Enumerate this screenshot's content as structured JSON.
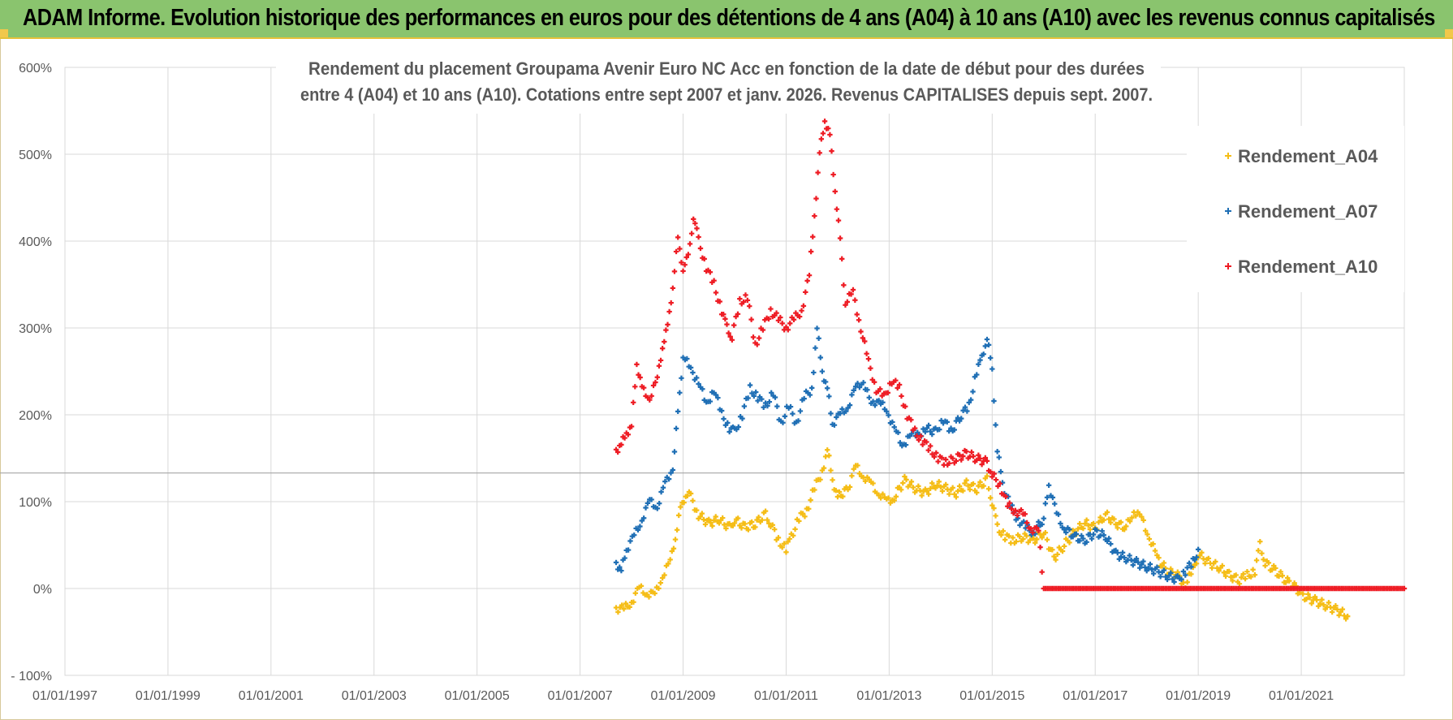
{
  "header": {
    "title": "ADAM Informe. Evolution historique des performances en euros pour des détentions de 4 ans (A04) à 10 ans (A10) avec les revenus connus capitalisés"
  },
  "chart_data": {
    "type": "scatter",
    "title_lines": [
      "Rendement du placement Groupama Avenir Euro NC Acc en fonction de la date de début pour des durées",
      "entre 4 (A04) et 10 ans (A10).  Cotations entre sept 2007 et janv. 2026. Revenus CAPITALISES  depuis sept. 2007."
    ],
    "xlabel": "",
    "ylabel": "",
    "x_range": [
      1997.0,
      2023.0
    ],
    "ylim": [
      -100,
      600
    ],
    "x_ticks": [
      1997,
      1999,
      2001,
      2003,
      2005,
      2007,
      2009,
      2011,
      2013,
      2015,
      2017,
      2019,
      2021
    ],
    "x_tick_labels": [
      "01/01/1997",
      "01/01/1999",
      "01/01/2001",
      "01/01/2003",
      "01/01/2005",
      "01/01/2007",
      "01/01/2009",
      "01/01/2011",
      "01/01/2013",
      "01/01/2015",
      "01/01/2017",
      "01/01/2019",
      "01/01/2021"
    ],
    "y_ticks": [
      -100,
      0,
      100,
      200,
      300,
      400,
      500,
      600
    ],
    "y_tick_labels": [
      "- 100%",
      "0%",
      "100%",
      "200%",
      "300%",
      "400%",
      "500%",
      "600%"
    ],
    "reference_line_y": 133,
    "legend_position": "right",
    "series": [
      {
        "name": "Rendement_A04",
        "color": "#f5bd16",
        "points": [
          [
            2007.7,
            -22
          ],
          [
            2007.85,
            -24
          ],
          [
            2008.0,
            -15
          ],
          [
            2008.15,
            0
          ],
          [
            2008.3,
            -5
          ],
          [
            2008.45,
            -8
          ],
          [
            2008.6,
            15
          ],
          [
            2008.75,
            30
          ],
          [
            2008.85,
            60
          ],
          [
            2008.95,
            90
          ],
          [
            2009.05,
            110
          ],
          [
            2009.15,
            105
          ],
          [
            2009.3,
            85
          ],
          [
            2009.5,
            75
          ],
          [
            2009.7,
            80
          ],
          [
            2009.9,
            70
          ],
          [
            2010.0,
            80
          ],
          [
            2010.2,
            70
          ],
          [
            2010.4,
            75
          ],
          [
            2010.6,
            85
          ],
          [
            2010.7,
            75
          ],
          [
            2010.85,
            55
          ],
          [
            2011.0,
            45
          ],
          [
            2011.1,
            60
          ],
          [
            2011.25,
            80
          ],
          [
            2011.4,
            90
          ],
          [
            2011.55,
            115
          ],
          [
            2011.7,
            135
          ],
          [
            2011.8,
            160
          ],
          [
            2011.9,
            125
          ],
          [
            2012.0,
            105
          ],
          [
            2012.2,
            115
          ],
          [
            2012.35,
            140
          ],
          [
            2012.5,
            130
          ],
          [
            2012.65,
            120
          ],
          [
            2012.8,
            110
          ],
          [
            2012.95,
            100
          ],
          [
            2013.1,
            105
          ],
          [
            2013.3,
            125
          ],
          [
            2013.5,
            115
          ],
          [
            2013.7,
            110
          ],
          [
            2013.9,
            120
          ],
          [
            2014.1,
            115
          ],
          [
            2014.3,
            110
          ],
          [
            2014.5,
            120
          ],
          [
            2014.7,
            115
          ],
          [
            2014.9,
            125
          ],
          [
            2015.0,
            100
          ],
          [
            2015.1,
            70
          ],
          [
            2015.25,
            60
          ],
          [
            2015.4,
            55
          ],
          [
            2015.6,
            60
          ],
          [
            2015.8,
            55
          ],
          [
            2016.0,
            65
          ],
          [
            2016.2,
            35
          ],
          [
            2016.4,
            50
          ],
          [
            2016.6,
            65
          ],
          [
            2016.8,
            75
          ],
          [
            2017.0,
            70
          ],
          [
            2017.2,
            85
          ],
          [
            2017.4,
            75
          ],
          [
            2017.6,
            70
          ],
          [
            2017.75,
            90
          ],
          [
            2017.9,
            80
          ],
          [
            2018.05,
            60
          ],
          [
            2018.2,
            35
          ],
          [
            2018.4,
            20
          ],
          [
            2018.6,
            15
          ],
          [
            2018.75,
            5
          ],
          [
            2018.9,
            20
          ],
          [
            2019.0,
            40
          ],
          [
            2019.2,
            30
          ],
          [
            2019.4,
            25
          ],
          [
            2019.6,
            15
          ],
          [
            2019.8,
            10
          ],
          [
            2019.95,
            15
          ],
          [
            2020.1,
            20
          ],
          [
            2020.2,
            50
          ],
          [
            2020.3,
            30
          ],
          [
            2020.5,
            20
          ],
          [
            2020.7,
            10
          ],
          [
            2020.9,
            0
          ],
          [
            2021.1,
            -10
          ],
          [
            2021.3,
            -15
          ],
          [
            2021.5,
            -20
          ],
          [
            2021.7,
            -25
          ],
          [
            2021.9,
            -32
          ]
        ]
      },
      {
        "name": "Rendement_A07",
        "color": "#1f6fb5",
        "points": [
          [
            2007.7,
            30
          ],
          [
            2007.8,
            20
          ],
          [
            2007.9,
            45
          ],
          [
            2008.05,
            60
          ],
          [
            2008.2,
            80
          ],
          [
            2008.35,
            100
          ],
          [
            2008.5,
            95
          ],
          [
            2008.65,
            120
          ],
          [
            2008.8,
            140
          ],
          [
            2008.9,
            200
          ],
          [
            2009.0,
            270
          ],
          [
            2009.15,
            250
          ],
          [
            2009.3,
            240
          ],
          [
            2009.45,
            210
          ],
          [
            2009.6,
            230
          ],
          [
            2009.75,
            200
          ],
          [
            2009.9,
            185
          ],
          [
            2010.0,
            180
          ],
          [
            2010.15,
            200
          ],
          [
            2010.3,
            230
          ],
          [
            2010.45,
            220
          ],
          [
            2010.6,
            210
          ],
          [
            2010.75,
            225
          ],
          [
            2010.9,
            190
          ],
          [
            2011.05,
            210
          ],
          [
            2011.2,
            190
          ],
          [
            2011.35,
            220
          ],
          [
            2011.5,
            230
          ],
          [
            2011.6,
            300
          ],
          [
            2011.7,
            250
          ],
          [
            2011.8,
            230
          ],
          [
            2011.9,
            190
          ],
          [
            2012.05,
            200
          ],
          [
            2012.2,
            210
          ],
          [
            2012.35,
            230
          ],
          [
            2012.5,
            240
          ],
          [
            2012.65,
            210
          ],
          [
            2012.8,
            220
          ],
          [
            2012.95,
            200
          ],
          [
            2013.1,
            190
          ],
          [
            2013.25,
            160
          ],
          [
            2013.4,
            180
          ],
          [
            2013.55,
            175
          ],
          [
            2013.7,
            185
          ],
          [
            2013.9,
            180
          ],
          [
            2014.05,
            195
          ],
          [
            2014.2,
            180
          ],
          [
            2014.4,
            200
          ],
          [
            2014.55,
            210
          ],
          [
            2014.7,
            250
          ],
          [
            2014.8,
            265
          ],
          [
            2014.9,
            290
          ],
          [
            2015.0,
            250
          ],
          [
            2015.1,
            160
          ],
          [
            2015.2,
            120
          ],
          [
            2015.35,
            95
          ],
          [
            2015.5,
            80
          ],
          [
            2015.65,
            70
          ],
          [
            2015.8,
            65
          ],
          [
            2016.0,
            80
          ],
          [
            2016.1,
            120
          ],
          [
            2016.25,
            85
          ],
          [
            2016.4,
            70
          ],
          [
            2016.6,
            60
          ],
          [
            2016.8,
            55
          ],
          [
            2017.0,
            65
          ],
          [
            2017.2,
            60
          ],
          [
            2017.4,
            40
          ],
          [
            2017.6,
            35
          ],
          [
            2017.8,
            30
          ],
          [
            2018.0,
            25
          ],
          [
            2018.2,
            20
          ],
          [
            2018.4,
            15
          ],
          [
            2018.6,
            10
          ],
          [
            2018.75,
            20
          ],
          [
            2018.9,
            30
          ],
          [
            2019.0,
            45
          ]
        ]
      },
      {
        "name": "Rendement_A10",
        "color": "#ee1c24",
        "points": [
          [
            2007.7,
            160
          ],
          [
            2007.8,
            165
          ],
          [
            2007.9,
            180
          ],
          [
            2008.0,
            185
          ],
          [
            2008.1,
            260
          ],
          [
            2008.2,
            230
          ],
          [
            2008.35,
            220
          ],
          [
            2008.5,
            240
          ],
          [
            2008.6,
            280
          ],
          [
            2008.7,
            300
          ],
          [
            2008.8,
            350
          ],
          [
            2008.9,
            400
          ],
          [
            2009.0,
            370
          ],
          [
            2009.1,
            380
          ],
          [
            2009.2,
            430
          ],
          [
            2009.3,
            400
          ],
          [
            2009.45,
            370
          ],
          [
            2009.6,
            350
          ],
          [
            2009.75,
            320
          ],
          [
            2009.85,
            300
          ],
          [
            2009.95,
            290
          ],
          [
            2010.1,
            330
          ],
          [
            2010.25,
            335
          ],
          [
            2010.4,
            280
          ],
          [
            2010.55,
            300
          ],
          [
            2010.7,
            320
          ],
          [
            2010.85,
            310
          ],
          [
            2011.0,
            300
          ],
          [
            2011.15,
            310
          ],
          [
            2011.3,
            320
          ],
          [
            2011.45,
            360
          ],
          [
            2011.55,
            430
          ],
          [
            2011.65,
            500
          ],
          [
            2011.75,
            540
          ],
          [
            2011.85,
            520
          ],
          [
            2011.95,
            460
          ],
          [
            2012.05,
            400
          ],
          [
            2012.15,
            330
          ],
          [
            2012.3,
            340
          ],
          [
            2012.45,
            300
          ],
          [
            2012.6,
            260
          ],
          [
            2012.75,
            230
          ],
          [
            2012.9,
            220
          ],
          [
            2013.05,
            240
          ],
          [
            2013.2,
            230
          ],
          [
            2013.35,
            200
          ],
          [
            2013.5,
            180
          ],
          [
            2013.65,
            170
          ],
          [
            2013.8,
            160
          ],
          [
            2013.95,
            150
          ],
          [
            2014.1,
            145
          ],
          [
            2014.3,
            150
          ],
          [
            2014.5,
            155
          ],
          [
            2014.7,
            150
          ],
          [
            2014.9,
            145
          ],
          [
            2015.0,
            130
          ],
          [
            2015.15,
            120
          ],
          [
            2015.3,
            95
          ],
          [
            2015.45,
            90
          ],
          [
            2015.6,
            85
          ],
          [
            2015.75,
            70
          ],
          [
            2015.9,
            65
          ],
          [
            2016.0,
            0
          ],
          [
            2016.5,
            0
          ],
          [
            2017.0,
            0
          ],
          [
            2017.5,
            0
          ],
          [
            2018.0,
            0
          ],
          [
            2018.5,
            0
          ],
          [
            2019.0,
            0
          ],
          [
            2019.5,
            0
          ],
          [
            2020.0,
            0
          ],
          [
            2020.5,
            0
          ],
          [
            2021.0,
            0
          ],
          [
            2021.5,
            0
          ],
          [
            2022.0,
            0
          ],
          [
            2022.5,
            0
          ],
          [
            2023.0,
            0
          ]
        ]
      }
    ]
  }
}
